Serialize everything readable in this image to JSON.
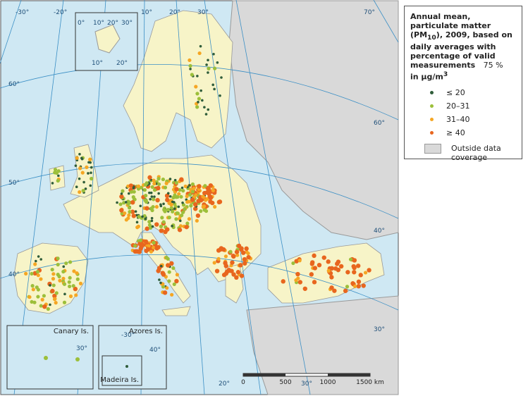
{
  "legend": {
    "title": [
      "Annual mean, particulate matter (PM",
      "10",
      "), 2009, based on daily averages with percentage of valid measurements",
      "75 %",
      "in µg/m",
      "3"
    ],
    "items": [
      {
        "label": "≤ 20",
        "color": "#2f5d3a"
      },
      {
        "label": "20–31",
        "color": "#9cbf3a"
      },
      {
        "label": "31–40",
        "color": "#f5a623"
      },
      {
        "label": "≥ 40",
        "color": "#e8661e"
      }
    ],
    "outside": "Outside data coverage"
  },
  "graticule": [
    "-30°",
    "-20°",
    "10°",
    "20°",
    "30°",
    "70°",
    "60°",
    "50°",
    "40°",
    "60°",
    "40°",
    "30°",
    "20°",
    "30°",
    "0°",
    "10°",
    "20°",
    "30°",
    "10°",
    "20°",
    "30°",
    "-30°",
    "40°"
  ],
  "insets": [
    "Canary Is.",
    "Azores Is.",
    "Madeira Is."
  ],
  "scale": [
    "0",
    "500",
    "1000",
    "1500 km"
  ]
}
